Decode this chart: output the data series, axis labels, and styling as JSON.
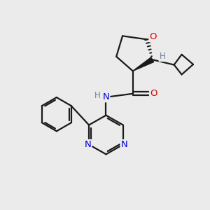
{
  "background_color": "#ebebeb",
  "bond_color": "#1a1a1a",
  "nitrogen_color": "#0000dd",
  "oxygen_color": "#dd0000",
  "hydrogen_color": "#708090",
  "line_width": 1.6,
  "figsize": [
    3.0,
    3.0
  ],
  "dpi": 100,
  "xlim": [
    0,
    10
  ],
  "ylim": [
    0,
    10
  ]
}
